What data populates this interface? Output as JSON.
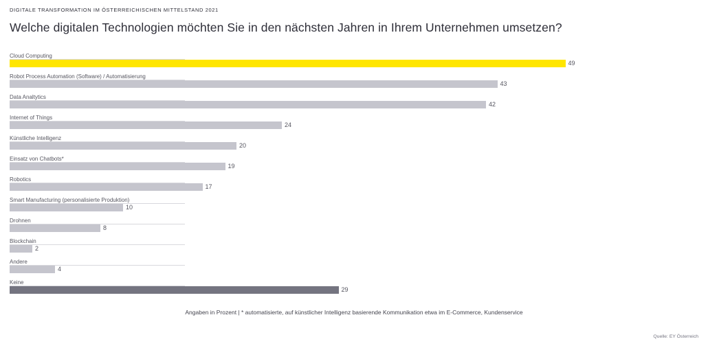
{
  "header": {
    "kicker": "DIGITALE TRANSFORMATION IM ÖSTERREICHISCHEN MITTELSTAND 2021"
  },
  "chart_data": {
    "type": "bar",
    "orientation": "horizontal",
    "title": "Welche digitalen Technologien möchten Sie in den nächsten Jahren in Ihrem Unternehmen umsetzen?",
    "categories": [
      "Cloud Computing",
      "Robot Process Automation (Software) / Automatisierung",
      "Data Analtytics",
      "Internet of Things",
      "Künstliche Intelligenz",
      "Einsatz von Chatbots*",
      "Robotics",
      "Smart Manufacturing (personalisierte Produktion)",
      "Drohnen",
      "Blockchain",
      "Andere",
      "Keine"
    ],
    "values": [
      49,
      43,
      42,
      24,
      20,
      19,
      17,
      10,
      8,
      2,
      4,
      29
    ],
    "unit": "Prozent",
    "xlim": [
      0,
      60
    ],
    "grid": false,
    "legend": false,
    "value_labels": "outside-end",
    "highlight_index": 0,
    "emphasis_index": 11,
    "colors": {
      "highlight": "#FFE600",
      "default": "#c5c5cd",
      "emphasis": "#747480"
    }
  },
  "footer": {
    "note": "Angaben in Prozent | * automatisierte, auf künstlicher Intelligenz basierende Kommunikation etwa im E-Commerce, Kundenservice",
    "source": "Quelle: EY Österreich"
  }
}
